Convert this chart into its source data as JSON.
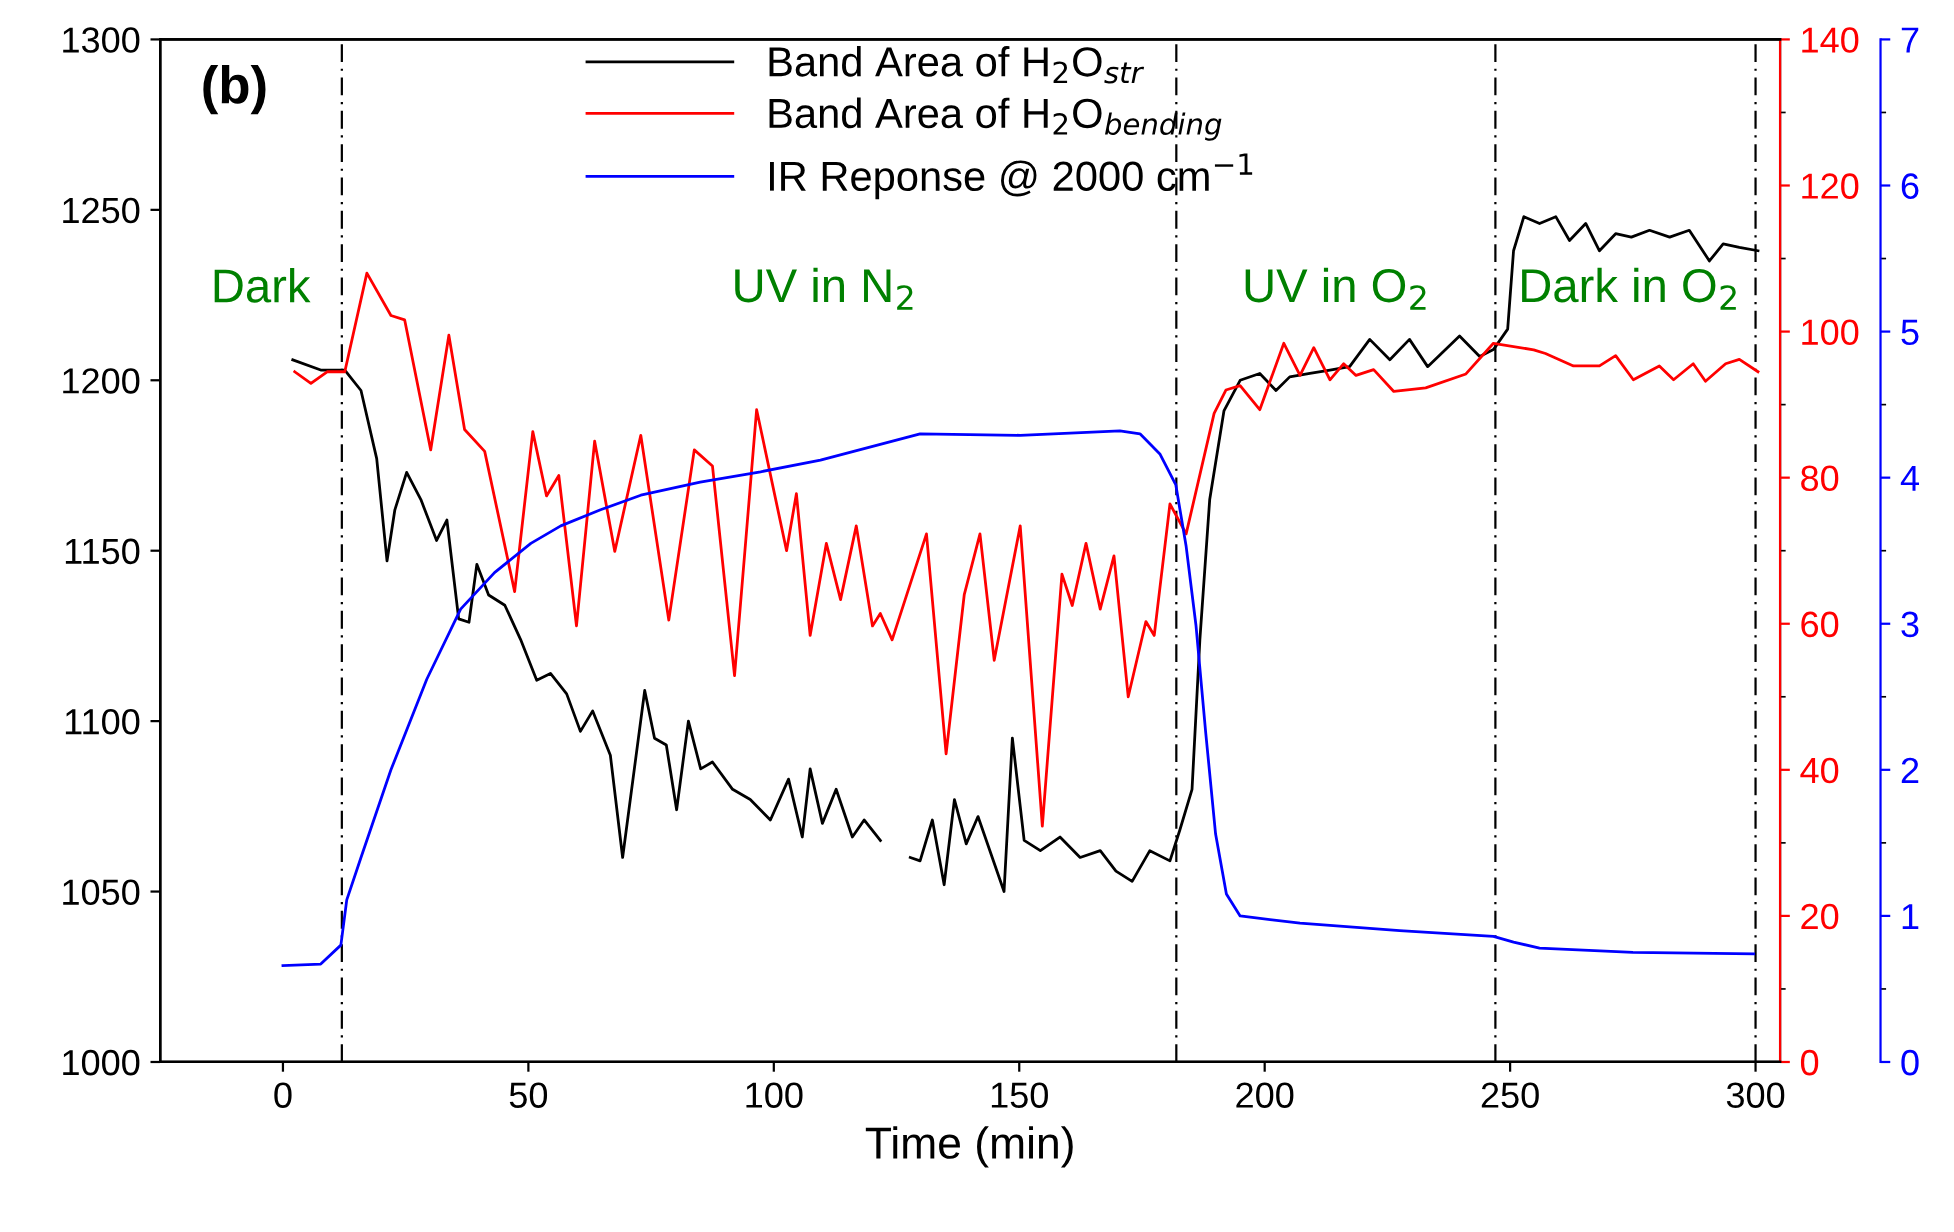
{
  "chart_data": {
    "type": "line",
    "title": "(b)",
    "xlabel": "Time (min)",
    "xlim": [
      -25,
      305
    ],
    "xticks": [
      0,
      50,
      100,
      150,
      200,
      250,
      300
    ],
    "ylim": [
      1000,
      1300
    ],
    "yticks": [
      1000,
      1050,
      1100,
      1150,
      1200,
      1250,
      1300
    ],
    "y2lim": [
      0,
      140
    ],
    "y2ticks": [
      0,
      20,
      40,
      60,
      80,
      100,
      120,
      140
    ],
    "y3lim": [
      0,
      7
    ],
    "y3ticks": [
      0,
      1,
      2,
      3,
      4,
      5,
      6,
      7
    ],
    "grid": false,
    "legend": "top",
    "marker": "none",
    "line_style": "solid",
    "series": [
      {
        "name": "Band Area of H$_{2}$O$_{str}$",
        "color": "#000000",
        "axis": "y",
        "x": [
          2.0,
          7.7,
          12.6,
          15.9,
          19.1,
          21.2,
          22.8,
          25.2,
          28.1,
          31.3,
          33.4,
          35.8,
          37.9,
          39.5,
          41.9,
          45.2,
          48.4,
          51.7,
          54.5,
          57.8,
          60.6,
          63.1,
          66.7,
          69.2,
          73.7,
          75.7,
          78.1,
          80.2,
          82.6,
          85.1,
          87.5,
          91.6,
          95.2,
          99.3,
          103,
          105.8,
          107.4,
          109.9,
          112.7,
          116,
          118.4,
          121.7,
          125,
          127.8,
          129.8,
          132.3,
          134.7,
          136.8,
          139.2,
          141.6,
          146.9,
          148.6,
          151,
          154.3,
          158.3,
          162.4,
          166.5,
          169.7,
          173,
          176.6,
          180.7,
          182.7,
          185.2,
          186.8,
          188.8,
          191.7,
          195,
          199,
          202.3,
          205.1,
          209.2,
          213.3,
          217.3,
          221.4,
          225.5,
          229.5,
          233.2,
          239.7,
          243.8,
          246.6,
          249.5,
          250.7,
          252.8,
          256,
          259.3,
          262.1,
          265.4,
          268.2,
          271.5,
          274.7,
          278.4,
          282.5,
          286.5,
          290.6,
          293.4,
          296.7,
          300.5
        ],
        "values": [
          1206,
          1203,
          1203,
          1197,
          1177,
          1147,
          1162,
          1173,
          1165,
          1153,
          1159,
          1130,
          1129,
          1146,
          1137,
          1134,
          1124,
          1112,
          1114,
          1108,
          1097,
          1103,
          1090,
          1060,
          1109,
          1095,
          1093,
          1074,
          1100,
          1086,
          1088,
          1080,
          1077,
          1071,
          1083,
          1066,
          1086,
          1070,
          1080,
          1066,
          1071,
          1065,
          null,
          1060,
          1059,
          1071,
          1052,
          1077,
          1064,
          1072,
          1050,
          1095,
          1065,
          1062,
          1066,
          1060,
          1062,
          1056,
          1053,
          1062,
          1059,
          1068,
          1080,
          1124,
          1165,
          1191,
          1200,
          1202,
          1197,
          1201,
          1202,
          1203,
          1204,
          1212,
          1206,
          1212,
          1204,
          1213,
          1207,
          1209,
          1215,
          1238,
          1248,
          1246,
          1248,
          1241,
          1246,
          1238,
          1243,
          1242,
          1244,
          1242,
          1244,
          1235,
          1240,
          1239,
          1238
        ]
      },
      {
        "name": "Band Area of H$_{2}$O$_{bending}$",
        "color": "#ff0000",
        "axis": "y2",
        "x": [
          2.4,
          5.7,
          9,
          12.6,
          17.1,
          22,
          24.8,
          30.1,
          33.8,
          37,
          41.1,
          47.2,
          50.9,
          53.7,
          56.2,
          59.8,
          63.5,
          67.6,
          72.9,
          78.6,
          83.8,
          87.5,
          92,
          96.5,
          102.6,
          104.6,
          107.4,
          110.7,
          113.6,
          116.8,
          120.1,
          121.7,
          124.1,
          131.1,
          135.1,
          138.8,
          142,
          144.9,
          150.2,
          154.7,
          158.7,
          160.8,
          163.6,
          166.5,
          169.3,
          172.2,
          175.8,
          177.5,
          180.7,
          184,
          189.7,
          192.1,
          195,
          199,
          203.9,
          207.2,
          210,
          213.3,
          216.1,
          218.6,
          222.2,
          226.3,
          232.8,
          241,
          246.6,
          254.8,
          257.2,
          262.9,
          268.2,
          271.5,
          275.1,
          280.4,
          283.3,
          287.3,
          289.8,
          293.9,
          296.7,
          300.5
        ],
        "values": [
          94.5,
          92.9,
          94.5,
          94.5,
          108,
          102.2,
          101.6,
          83.8,
          99.5,
          86.6,
          83.6,
          64.4,
          86.3,
          77.5,
          80.3,
          59.7,
          85,
          69.9,
          85.8,
          60.5,
          83.8,
          81.6,
          52.9,
          89.3,
          70,
          77.8,
          58.4,
          71,
          63.3,
          73.4,
          59.7,
          61.4,
          57.8,
          72.3,
          42.2,
          64,
          72.3,
          55,
          73.4,
          32.3,
          66.8,
          62.5,
          71,
          62,
          69.3,
          50,
          60.3,
          58.4,
          76.4,
          72.3,
          88.8,
          92,
          92.6,
          89.3,
          98.4,
          94,
          97.8,
          93.4,
          95.6,
          94,
          94.8,
          91.8,
          92.3,
          94.2,
          98.4,
          97.5,
          97,
          95.3,
          95.3,
          96.7,
          93.4,
          95.3,
          93.4,
          95.6,
          93.2,
          95.6,
          96.2,
          94.5
        ]
      },
      {
        "name": "IR Reponse @ 2000 cm$^{−1}$",
        "color": "#0000ff",
        "axis": "y3",
        "x": [
          0,
          7.7,
          11.8,
          13,
          15.9,
          22,
          29.3,
          36.2,
          43.1,
          50.5,
          56.6,
          64.7,
          72.9,
          85,
          97.3,
          109.5,
          129.8,
          150.2,
          170.5,
          174.6,
          178.7,
          181.9,
          184,
          186,
          188,
          190,
          192.2,
          195,
          207.2,
          227.5,
          246.6,
          250.7,
          256,
          275,
          299.6
        ],
        "values": [
          0.66,
          0.67,
          0.8,
          1.11,
          1.4,
          2.0,
          2.62,
          3.1,
          3.35,
          3.55,
          3.67,
          3.78,
          3.88,
          3.97,
          4.04,
          4.12,
          4.3,
          4.29,
          4.32,
          4.3,
          4.16,
          3.95,
          3.53,
          2.99,
          2.25,
          1.56,
          1.15,
          1.0,
          0.95,
          0.9,
          0.86,
          0.82,
          0.78,
          0.75,
          0.74
        ]
      }
    ],
    "ref_lines": [
      {
        "axis": "x",
        "value": 12,
        "color": "#000000",
        "line_style": "dashed"
      },
      {
        "axis": "x",
        "value": 182,
        "color": "#000000",
        "line_style": "dashed"
      },
      {
        "axis": "x",
        "value": 247,
        "color": "#000000",
        "line_style": "dashed"
      },
      {
        "axis": "x",
        "value": 300,
        "color": "#000000",
        "line_style": "dashed"
      }
    ],
    "annotations": [
      "Dark",
      "UV in N$_{2}$",
      "UV in O$_{2}$",
      "Dark in O$_{2}$"
    ]
  }
}
